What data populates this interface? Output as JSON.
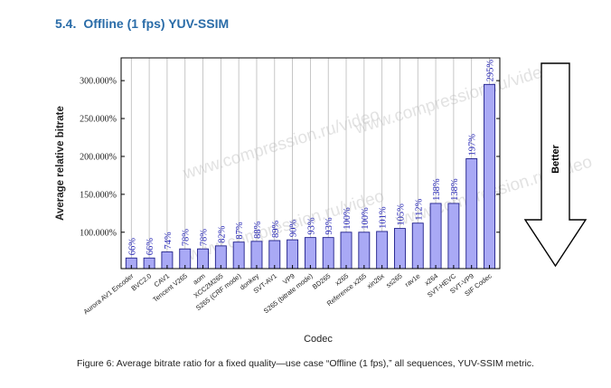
{
  "section": {
    "number": "5.4.",
    "title": "Offline (1 fps) YUV-SSIM"
  },
  "caption": "Figure 6: Average bitrate ratio for a fixed quality—use case “Offline (1 fps),” all sequences, YUV-SSIM metric.",
  "watermark": "www.compression.ru/video",
  "better_label": "Better",
  "chart_data": {
    "type": "bar",
    "xlabel": "Codec",
    "ylabel": "Average relative bitrate",
    "ylim": [
      52,
      330
    ],
    "yticks": [
      100,
      150,
      200,
      250,
      300
    ],
    "ytick_labels": [
      "100.000%",
      "150.000%",
      "200.000%",
      "250.000%",
      "300.000%"
    ],
    "grid": "vertical",
    "bar_color": "#a9a9f5",
    "bar_edge": "#1e1e8a",
    "label_color": "#1e1eb4",
    "categories": [
      "Aurora AV1 Encoder",
      "BVC2.0",
      "CAV1",
      "Tencent V265",
      "aom",
      "XCC2M265",
      "S265 (CRF mode)",
      "donkey",
      "SVT-AV1",
      "VP9",
      "S265 (bitrate mode)",
      "BD265",
      "x265",
      "Reference x265",
      "xin26x",
      "ss265",
      "rav1e",
      "x264",
      "SVT-HEVC",
      "SVT-VP9",
      "SIF Codec"
    ],
    "values": [
      66,
      66,
      74,
      78,
      78,
      82,
      87,
      88,
      89,
      90,
      93,
      93,
      100,
      100,
      101,
      105,
      112,
      138,
      138,
      197,
      295
    ],
    "data_labels": [
      "66%",
      "66%",
      "74%",
      "78%",
      "78%",
      "82%",
      "87%",
      "88%",
      "89%",
      "90%",
      "93%",
      "93%",
      "100%",
      "100%",
      "101%",
      "105%",
      "112%",
      "138%",
      "138%",
      "197%",
      "295%"
    ]
  }
}
